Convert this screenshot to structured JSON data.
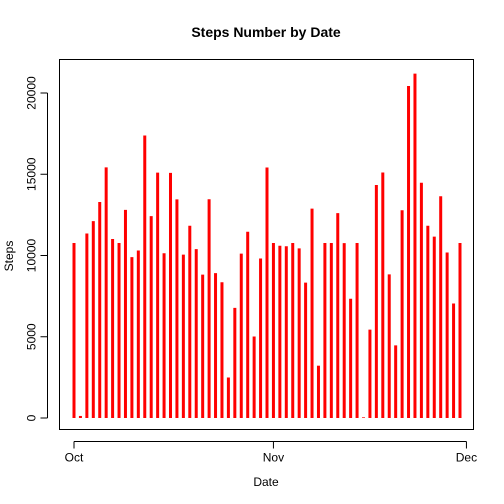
{
  "chart_data": {
    "type": "bar",
    "style": "histogram-lines",
    "title": "Steps Number by Date",
    "xlabel": "Date",
    "ylabel": "Steps",
    "color": "#ff0000",
    "grid": false,
    "legend": "none",
    "xlim": [
      "2012-10-01",
      "2012-11-30"
    ],
    "ylim": [
      0,
      21500
    ],
    "xticks": [
      {
        "date": "2012-10-01",
        "label": "Oct"
      },
      {
        "date": "2012-11-01",
        "label": "Nov"
      },
      {
        "date": "2012-12-01",
        "label": "Dec"
      }
    ],
    "yticks": [
      0,
      5000,
      10000,
      15000,
      20000
    ],
    "x": [
      "2012-10-01",
      "2012-10-02",
      "2012-10-03",
      "2012-10-04",
      "2012-10-05",
      "2012-10-06",
      "2012-10-07",
      "2012-10-08",
      "2012-10-09",
      "2012-10-10",
      "2012-10-11",
      "2012-10-12",
      "2012-10-13",
      "2012-10-14",
      "2012-10-15",
      "2012-10-16",
      "2012-10-17",
      "2012-10-18",
      "2012-10-19",
      "2012-10-20",
      "2012-10-21",
      "2012-10-22",
      "2012-10-23",
      "2012-10-24",
      "2012-10-25",
      "2012-10-26",
      "2012-10-27",
      "2012-10-28",
      "2012-10-29",
      "2012-10-30",
      "2012-10-31",
      "2012-11-01",
      "2012-11-02",
      "2012-11-03",
      "2012-11-04",
      "2012-11-05",
      "2012-11-06",
      "2012-11-07",
      "2012-11-08",
      "2012-11-09",
      "2012-11-10",
      "2012-11-11",
      "2012-11-12",
      "2012-11-13",
      "2012-11-14",
      "2012-11-15",
      "2012-11-16",
      "2012-11-17",
      "2012-11-18",
      "2012-11-19",
      "2012-11-20",
      "2012-11-21",
      "2012-11-22",
      "2012-11-23",
      "2012-11-24",
      "2012-11-25",
      "2012-11-26",
      "2012-11-27",
      "2012-11-28",
      "2012-11-29",
      "2012-11-30"
    ],
    "values": [
      10766,
      126,
      11352,
      12116,
      13294,
      15420,
      11015,
      10766,
      12811,
      9900,
      10304,
      17382,
      12426,
      15098,
      10139,
      15084,
      13452,
      10056,
      11829,
      10395,
      8821,
      13460,
      8918,
      8355,
      2492,
      6778,
      10119,
      11458,
      5018,
      9819,
      15414,
      10766,
      10600,
      10571,
      10766,
      10439,
      8334,
      12883,
      3219,
      10766,
      10766,
      12608,
      10765,
      7336,
      10766,
      41,
      5441,
      14339,
      15110,
      8841,
      4472,
      12787,
      20427,
      21194,
      14478,
      11834,
      11162,
      13646,
      10183,
      7047,
      10766
    ]
  }
}
